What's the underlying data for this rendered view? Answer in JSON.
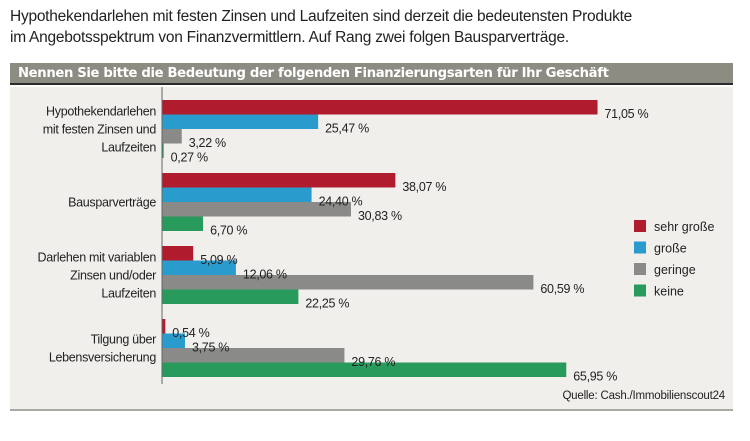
{
  "intro": {
    "lines": [
      "Hypothekendarlehen mit festen Zinsen und Laufzeiten sind derzeit die bedeutensten Produkte",
      "im Angebotsspektrum von Finanzvermittlern. Auf Rang zwei folgen Bausparverträge."
    ]
  },
  "chart_data": {
    "type": "bar",
    "orientation": "horizontal",
    "title": "Nennen Sie bitte die Bedeutung der folgenden Finanzierungsarten für Ihr Geschäft",
    "categories": [
      [
        "Hypothekendarlehen",
        "mit festen Zinsen und",
        "Laufzeiten"
      ],
      [
        "Bausparverträge"
      ],
      [
        "Darlehen mit variablen",
        "Zinsen und/oder",
        "Laufzeiten"
      ],
      [
        "Tilgung über",
        "Lebensversicherung"
      ]
    ],
    "series": [
      {
        "name": "sehr große",
        "color": "#b01c2e",
        "values": [
          71.05,
          38.07,
          5.09,
          0.54
        ],
        "labels": [
          "71,05 %",
          "38,07 %",
          "5,09 %",
          "0,54 %"
        ]
      },
      {
        "name": "große",
        "color": "#2a9bcd",
        "values": [
          25.47,
          24.4,
          12.06,
          3.75
        ],
        "labels": [
          "25,47 %",
          "24,40 %",
          "12,06 %",
          "3,75 %"
        ]
      },
      {
        "name": "geringe",
        "color": "#8a8a88",
        "values": [
          3.22,
          30.83,
          60.59,
          29.76
        ],
        "labels": [
          "3,22 %",
          "30,83 %",
          "60,59 %",
          "29,76 %"
        ]
      },
      {
        "name": "keine",
        "color": "#279a5c",
        "values": [
          0.27,
          6.7,
          22.25,
          65.95
        ],
        "labels": [
          "0,27 %",
          "6,70 %",
          "22,25 %",
          "65,95 %"
        ]
      }
    ],
    "unit": "%",
    "xlim": [
      0,
      100
    ],
    "grid": false,
    "legend_position": "right",
    "source": "Quelle: Cash./Immobilienscout24"
  }
}
